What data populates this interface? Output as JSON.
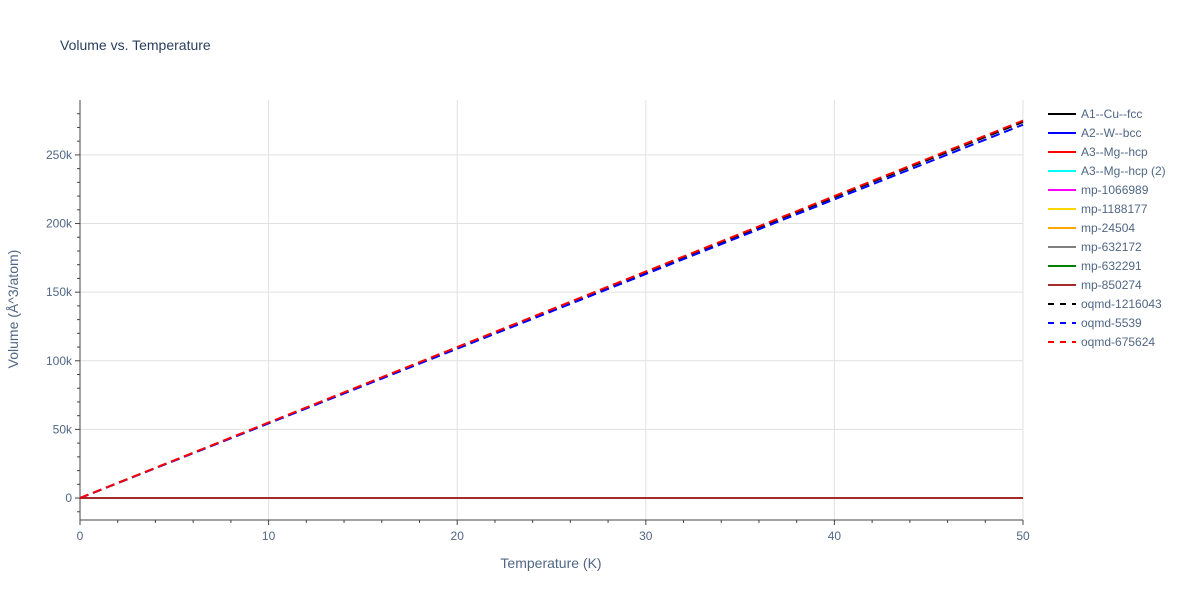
{
  "chart_data": {
    "type": "line",
    "title": "Volume vs. Temperature",
    "xlabel": "Temperature (K)",
    "ylabel": "Volume (Å^3/atom)",
    "xlim": [
      0,
      50
    ],
    "ylim": [
      -16000,
      290000
    ],
    "x_ticks": [
      0,
      10,
      20,
      30,
      40,
      50
    ],
    "x_tick_labels": [
      "0",
      "10",
      "20",
      "30",
      "40",
      "50"
    ],
    "y_ticks": [
      0,
      50000,
      100000,
      150000,
      200000,
      250000
    ],
    "y_tick_labels": [
      "0",
      "50k",
      "100k",
      "150k",
      "200k",
      "250k"
    ],
    "grid": true,
    "legend_position": "right",
    "series": [
      {
        "name": "A1--Cu--fcc",
        "color": "#000000",
        "dash": "solid",
        "x": [
          0,
          50
        ],
        "y": [
          0,
          0
        ]
      },
      {
        "name": "A2--W--bcc",
        "color": "#0000ff",
        "dash": "solid",
        "x": [
          0,
          50
        ],
        "y": [
          0,
          0
        ]
      },
      {
        "name": "A3--Mg--hcp",
        "color": "#ff0000",
        "dash": "solid",
        "x": [
          0,
          50
        ],
        "y": [
          0,
          0
        ]
      },
      {
        "name": "A3--Mg--hcp (2)",
        "color": "#00ffff",
        "dash": "solid",
        "x": [
          0,
          50
        ],
        "y": [
          0,
          0
        ]
      },
      {
        "name": "mp-1066989",
        "color": "#ff00ff",
        "dash": "solid",
        "x": [
          0,
          50
        ],
        "y": [
          0,
          0
        ]
      },
      {
        "name": "mp-1188177",
        "color": "#ffd700",
        "dash": "solid",
        "x": [
          0,
          50
        ],
        "y": [
          0,
          0
        ]
      },
      {
        "name": "mp-24504",
        "color": "#ffa500",
        "dash": "solid",
        "x": [
          0,
          50
        ],
        "y": [
          0,
          0
        ]
      },
      {
        "name": "mp-632172",
        "color": "#808080",
        "dash": "solid",
        "x": [
          0,
          50
        ],
        "y": [
          0,
          0
        ]
      },
      {
        "name": "mp-632291",
        "color": "#008000",
        "dash": "solid",
        "x": [
          0,
          50
        ],
        "y": [
          0,
          0
        ]
      },
      {
        "name": "mp-850274",
        "color": "#a52a2a",
        "dash": "solid",
        "x": [
          0,
          50
        ],
        "y": [
          0,
          0
        ]
      },
      {
        "name": "oqmd-1216043",
        "color": "#000000",
        "dash": "dash",
        "x": [
          0,
          50
        ],
        "y": [
          0,
          274000
        ]
      },
      {
        "name": "oqmd-5539",
        "color": "#0000ff",
        "dash": "dash",
        "x": [
          0,
          50
        ],
        "y": [
          0,
          272000
        ]
      },
      {
        "name": "oqmd-675624",
        "color": "#ff0000",
        "dash": "dash",
        "x": [
          0,
          50
        ],
        "y": [
          0,
          275000
        ]
      }
    ]
  }
}
